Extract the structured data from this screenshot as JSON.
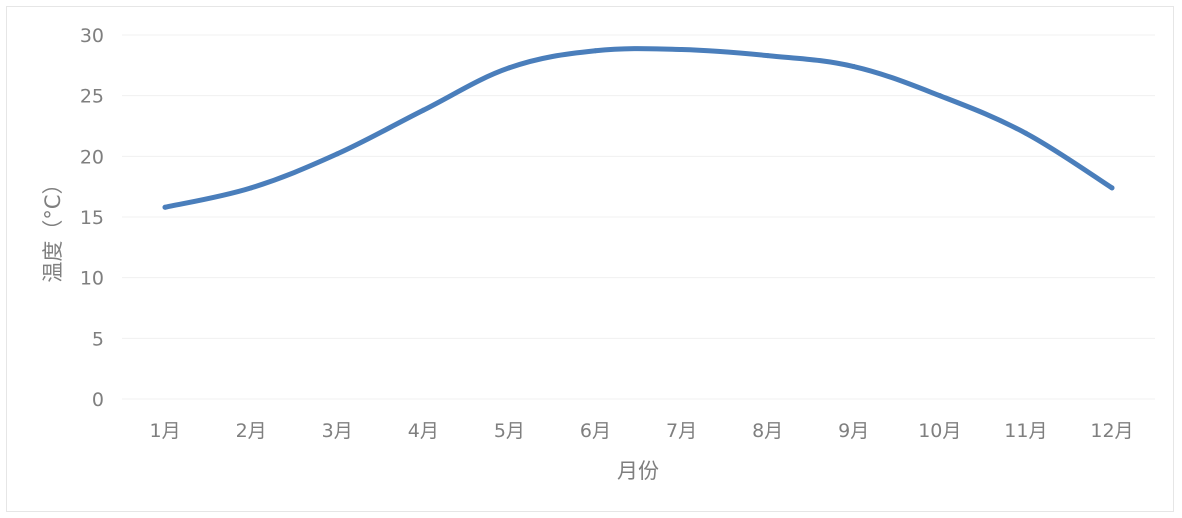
{
  "chart_data": {
    "type": "line",
    "xlabel": "月份",
    "ylabel": "温度（°C）",
    "categories": [
      "1月",
      "2月",
      "3月",
      "4月",
      "5月",
      "6月",
      "7月",
      "8月",
      "9月",
      "10月",
      "11月",
      "12月"
    ],
    "series": [
      {
        "values": [
          15.8,
          17.4,
          20.2,
          23.8,
          27.3,
          28.7,
          28.8,
          28.3,
          27.4,
          25.0,
          21.9,
          17.4
        ],
        "color": "#4a7ebb"
      }
    ],
    "ylim": [
      0,
      30
    ],
    "yticks": [
      "0",
      "5",
      "10",
      "15",
      "20",
      "25",
      "30"
    ],
    "grid": true,
    "legend": "none"
  }
}
